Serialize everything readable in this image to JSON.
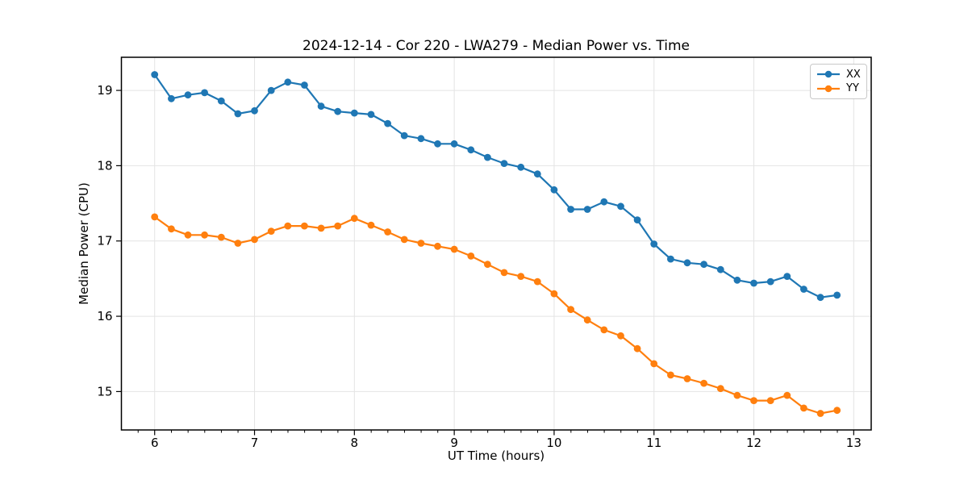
{
  "chart_data": {
    "type": "line",
    "title": "2024-12-14 - Cor 220 - LWA279 - Median Power vs. Time",
    "xlabel": "UT Time (hours)",
    "ylabel": "Median Power (CPU)",
    "xlim": [
      5.667,
      13.175
    ],
    "ylim": [
      14.49,
      19.44
    ],
    "xticks": [
      6,
      7,
      8,
      9,
      10,
      11,
      12,
      13
    ],
    "yticks": [
      15,
      16,
      17,
      18,
      19
    ],
    "x_minor_step": 0.1667,
    "grid": true,
    "legend_position": "upper right",
    "x": [
      6.0,
      6.167,
      6.333,
      6.5,
      6.667,
      6.833,
      7.0,
      7.167,
      7.333,
      7.5,
      7.667,
      7.833,
      8.0,
      8.167,
      8.333,
      8.5,
      8.667,
      8.833,
      9.0,
      9.167,
      9.333,
      9.5,
      9.667,
      9.833,
      10.0,
      10.167,
      10.333,
      10.5,
      10.667,
      10.833,
      11.0,
      11.167,
      11.333,
      11.5,
      11.667,
      11.833,
      12.0,
      12.167,
      12.333,
      12.5,
      12.667,
      12.833
    ],
    "series": [
      {
        "name": "XX",
        "color": "#1f77b4",
        "values": [
          19.21,
          18.89,
          18.94,
          18.97,
          18.86,
          18.69,
          18.73,
          19.0,
          19.11,
          19.07,
          18.79,
          18.72,
          18.7,
          18.68,
          18.56,
          18.4,
          18.36,
          18.29,
          18.29,
          18.21,
          18.11,
          18.03,
          17.98,
          17.89,
          17.68,
          17.42,
          17.42,
          17.52,
          17.46,
          17.28,
          16.96,
          16.76,
          16.71,
          16.69,
          16.62,
          16.48,
          16.44,
          16.46,
          16.53,
          16.36,
          16.25,
          16.28
        ]
      },
      {
        "name": "YY",
        "color": "#ff7f0e",
        "values": [
          17.32,
          17.16,
          17.08,
          17.08,
          17.05,
          16.97,
          17.02,
          17.13,
          17.2,
          17.2,
          17.17,
          17.2,
          17.3,
          17.21,
          17.12,
          17.02,
          16.97,
          16.93,
          16.89,
          16.8,
          16.69,
          16.58,
          16.53,
          16.46,
          16.3,
          16.09,
          15.95,
          15.82,
          15.74,
          15.57,
          15.37,
          15.22,
          15.17,
          15.11,
          15.04,
          14.95,
          14.88,
          14.88,
          14.95,
          14.78,
          14.71,
          14.75
        ]
      }
    ],
    "style": {
      "grid_color": "#e4e4e4",
      "spine_color": "#000000",
      "background": "#ffffff"
    }
  }
}
